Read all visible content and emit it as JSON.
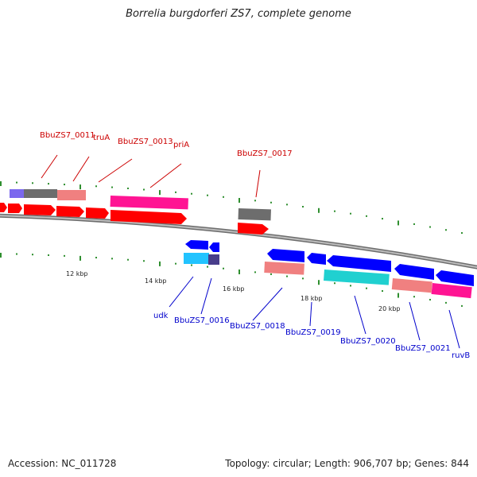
{
  "title": "Borrelia burgdorferi ZS7, complete genome",
  "footer": {
    "accession": "Accession: NC_011728",
    "summary": "Topology: circular; Length: 906,707 bp; Genes: 844"
  },
  "colors": {
    "backbone": "#999999",
    "tick": "#2f8f2f",
    "forward_arrow": "#ff0000",
    "reverse_arrow": "#0000ff",
    "label_forward": "#cc0000",
    "label_reverse": "#0000cc",
    "pink": "#ff1493",
    "salmon": "#f08080",
    "grey": "#6d6d6d",
    "cyan": "#22c3ff",
    "teal": "#20d0d0",
    "slate": "#6a5acd"
  },
  "scale_labels": [
    "12 kbp",
    "14 kbp",
    "16 kbp",
    "18 kbp",
    "20 kbp"
  ],
  "top_labels": [
    "BbuZS7_0011",
    "truA",
    "BbuZS7_0013",
    "priA",
    "BbuZS7_0017"
  ],
  "bottom_labels": [
    "udk",
    "BbuZS7_0016",
    "BbuZS7_0018",
    "BbuZS7_0019",
    "BbuZS7_0020",
    "BbuZS7_0021",
    "ruvB"
  ]
}
